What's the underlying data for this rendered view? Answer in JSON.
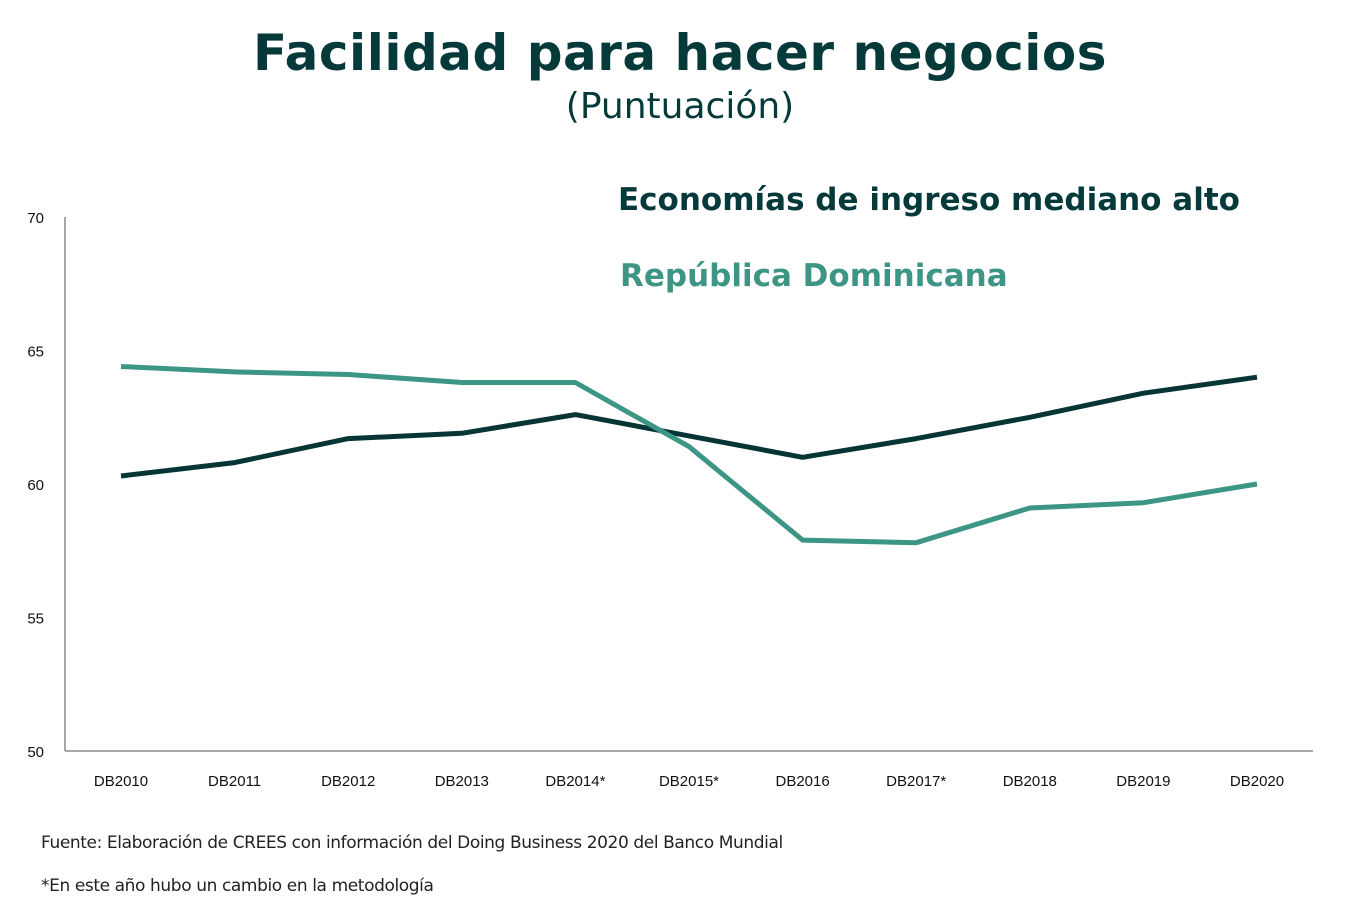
{
  "header": {
    "title": "Facilidad para hacer negocios",
    "subtitle": "(Puntuación)"
  },
  "footer": {
    "source": "Fuente: Elaboración de CREES con información del Doing Business 2020 del Banco Mundial",
    "note": "*En este año hubo un cambio en la metodología"
  },
  "chart_data": {
    "type": "line",
    "title": "Facilidad para hacer negocios",
    "subtitle": "(Puntuación)",
    "xlabel": "",
    "ylabel": "",
    "ylim": [
      50,
      70
    ],
    "yticks": [
      50,
      55,
      60,
      65,
      70
    ],
    "grid": false,
    "legend_position": "top-right",
    "categories": [
      "DB2010",
      "DB2011",
      "DB2012",
      "DB2013",
      "DB2014*",
      "DB2015*",
      "DB2016",
      "DB2017*",
      "DB2018",
      "DB2019",
      "DB2020"
    ],
    "series": [
      {
        "name": "Economías de ingreso mediano alto",
        "color": "#073535",
        "values": [
          60.3,
          60.8,
          61.7,
          61.9,
          62.6,
          61.8,
          61.0,
          61.7,
          62.5,
          63.4,
          64.0
        ]
      },
      {
        "name": "República Dominicana",
        "color": "#3d9685",
        "values": [
          64.4,
          64.2,
          64.1,
          63.8,
          63.8,
          61.4,
          57.9,
          57.8,
          59.1,
          59.3,
          60.0
        ]
      }
    ]
  }
}
